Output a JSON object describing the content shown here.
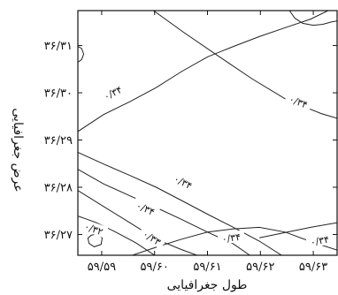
{
  "chart_data": {
    "type": "contour",
    "xlabel": "طول جغرافیایی",
    "ylabel": "عرض جغرافیایی",
    "x_ticks": [
      {
        "value": 59.59,
        "label": "۵۹/۵۹"
      },
      {
        "value": 59.6,
        "label": "۵۹/۶۰"
      },
      {
        "value": 59.61,
        "label": "۵۹/۶۱"
      },
      {
        "value": 59.62,
        "label": "۵۹/۶۲"
      },
      {
        "value": 59.63,
        "label": "۵۹/۶۳"
      }
    ],
    "y_ticks": [
      {
        "value": 36.27,
        "label": "۳۶/۲۷"
      },
      {
        "value": 36.28,
        "label": "۳۶/۲۸"
      },
      {
        "value": 36.29,
        "label": "۳۶/۲۹"
      },
      {
        "value": 36.3,
        "label": "۳۶/۳۰"
      },
      {
        "value": 36.31,
        "label": "۳۶/۳۱"
      }
    ],
    "xlim": [
      59.5855,
      59.6345
    ],
    "ylim": [
      36.2656,
      36.3174
    ],
    "grid": false,
    "contours": [
      {
        "level_label": "۰/۳۴",
        "points": [
          [
            59.5998,
            36.3174
          ],
          [
            59.6055,
            36.3128
          ],
          [
            59.612,
            36.3078
          ],
          [
            59.6185,
            36.3029
          ],
          [
            59.625,
            36.2985
          ],
          [
            59.6315,
            36.2956
          ],
          [
            59.6345,
            36.2946
          ]
        ],
        "label_at": [
          59.6272,
          36.2981
        ]
      },
      {
        "level_label": "۰/۳۴",
        "points": [
          [
            59.5855,
            36.2918
          ],
          [
            59.5904,
            36.2954
          ],
          [
            59.5953,
            36.2981
          ],
          [
            59.6003,
            36.3011
          ],
          [
            59.6051,
            36.3045
          ],
          [
            59.61,
            36.3076
          ],
          [
            59.6149,
            36.3098
          ],
          [
            59.6198,
            36.3119
          ],
          [
            59.6247,
            36.3138
          ],
          [
            59.6295,
            36.3156
          ],
          [
            59.6328,
            36.3174
          ]
        ],
        "label_at": [
          59.5921,
          36.3
        ]
      },
      {
        "level_label": "۰/۳۴",
        "points": [
          [
            59.5855,
            36.2874
          ],
          [
            59.5904,
            36.2849
          ],
          [
            59.5953,
            36.2825
          ],
          [
            59.6003,
            36.28
          ],
          [
            59.6051,
            36.2772
          ],
          [
            59.61,
            36.2743
          ],
          [
            59.6149,
            36.2715
          ],
          [
            59.6198,
            36.2686
          ],
          [
            59.624,
            36.2656
          ]
        ],
        "label_at": [
          59.6054,
          36.2811
        ]
      },
      {
        "level_label": "۰/۳۴",
        "points": [
          [
            59.5855,
            36.2838
          ],
          [
            59.5904,
            36.2807
          ],
          [
            59.5953,
            36.2782
          ],
          [
            59.6003,
            36.2757
          ],
          [
            59.6051,
            36.2732
          ],
          [
            59.61,
            36.2705
          ],
          [
            59.6149,
            36.268
          ],
          [
            59.618,
            36.2656
          ]
        ],
        "label_at": [
          59.5983,
          36.2755
        ]
      },
      {
        "level_label": "۰/۳۳",
        "points": [
          [
            59.5855,
            36.2793
          ],
          [
            59.5904,
            36.2759
          ],
          [
            59.5953,
            36.2725
          ],
          [
            59.6003,
            36.269
          ],
          [
            59.6051,
            36.2668
          ],
          [
            59.608,
            36.2656
          ]
        ],
        "label_at": [
          59.5995,
          36.2693
        ]
      },
      {
        "level_label": "۰/۳۴",
        "points": [
          [
            59.5958,
            36.2656
          ],
          [
            59.6003,
            36.2673
          ],
          [
            59.6051,
            36.269
          ],
          [
            59.61,
            36.2705
          ],
          [
            59.6149,
            36.2712
          ],
          [
            59.6198,
            36.2715
          ],
          [
            59.6247,
            36.2705
          ],
          [
            59.6295,
            36.2685
          ],
          [
            59.6345,
            36.2667
          ]
        ],
        "label_at": [
          59.6145,
          36.2693
        ]
      },
      {
        "level_label": "۰/۳۴",
        "points": [
          [
            59.6345,
            36.2725
          ],
          [
            59.6295,
            36.2715
          ],
          [
            59.6247,
            36.2704
          ],
          [
            59.6198,
            36.2693
          ]
        ],
        "label_at": [
          59.6312,
          36.2687
        ]
      },
      {
        "level_label": "۰/۳۲",
        "points": [
          [
            59.5855,
            36.2739
          ],
          [
            59.589,
            36.2725
          ],
          [
            59.5925,
            36.2706
          ],
          [
            59.5965,
            36.2682
          ],
          [
            59.6,
            36.2656
          ]
        ],
        "label_at": [
          59.5885,
          36.2712
        ]
      },
      {
        "level_label": "",
        "closed": true,
        "points": [
          [
            59.588,
            36.2698
          ],
          [
            59.5892,
            36.2702
          ],
          [
            59.5901,
            36.2693
          ],
          [
            59.5899,
            36.2679
          ],
          [
            59.5886,
            36.2674
          ],
          [
            59.5876,
            36.2681
          ],
          [
            59.5874,
            36.2692
          ]
        ]
      },
      {
        "level_label": "",
        "points": [
          [
            59.6255,
            36.3174
          ],
          [
            59.6265,
            36.3158
          ],
          [
            59.628,
            36.3147
          ],
          [
            59.63,
            36.3143
          ],
          [
            59.6318,
            36.3145
          ],
          [
            59.6335,
            36.315
          ],
          [
            59.6345,
            36.3152
          ]
        ]
      },
      {
        "level_label": "",
        "points": [
          [
            59.5855,
            36.3065
          ],
          [
            59.5862,
            36.307
          ],
          [
            59.5866,
            36.3082
          ],
          [
            59.5862,
            36.3094
          ],
          [
            59.5855,
            36.3098
          ]
        ]
      }
    ]
  }
}
